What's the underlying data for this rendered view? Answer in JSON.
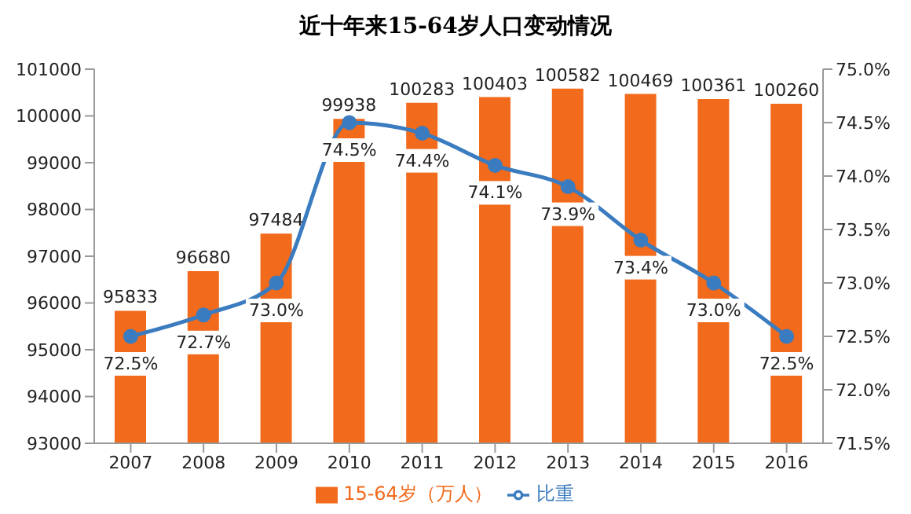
{
  "chart_data": {
    "type": "bar",
    "title": "近十年来15-64岁人口变动情况",
    "categories": [
      "2007",
      "2008",
      "2009",
      "2010",
      "2011",
      "2012",
      "2013",
      "2014",
      "2015",
      "2016"
    ],
    "series": [
      {
        "name": "15-64岁（万人）",
        "color": "#f26a1b",
        "values": [
          95833,
          96680,
          97484,
          99938,
          100283,
          100403,
          100582,
          100469,
          100361,
          100260
        ],
        "value_labels": [
          "95833",
          "96680",
          "97484",
          "99938",
          "100283",
          "100403",
          "100582",
          "100469",
          "100361",
          "100260"
        ]
      },
      {
        "name": "比重",
        "type": "line",
        "axis": "y2",
        "color": "#3a7cbf",
        "values": [
          72.5,
          72.7,
          73.0,
          74.5,
          74.4,
          74.1,
          73.9,
          73.4,
          73.0,
          72.5
        ],
        "value_labels": [
          "72.5%",
          "72.7%",
          "73.0%",
          "74.5%",
          "74.4%",
          "74.1%",
          "73.9%",
          "73.4%",
          "73.0%",
          "72.5%"
        ]
      }
    ],
    "ylim": [
      93000,
      101000
    ],
    "yticks": [
      93000,
      94000,
      95000,
      96000,
      97000,
      98000,
      99000,
      100000,
      101000
    ],
    "y2lim": [
      71.5,
      75.0
    ],
    "y2ticks": [
      {
        "value": 71.5,
        "label": "71.5%"
      },
      {
        "value": 72.0,
        "label": "72.0%"
      },
      {
        "value": 72.5,
        "label": "72.5%"
      },
      {
        "value": 73.0,
        "label": "73.0%"
      },
      {
        "value": 73.5,
        "label": "73.5%"
      },
      {
        "value": 74.0,
        "label": "74.0%"
      },
      {
        "value": 74.5,
        "label": "74.5%"
      },
      {
        "value": 75.0,
        "label": "75.0%"
      }
    ],
    "marker": "circle",
    "legend": "bottom"
  }
}
